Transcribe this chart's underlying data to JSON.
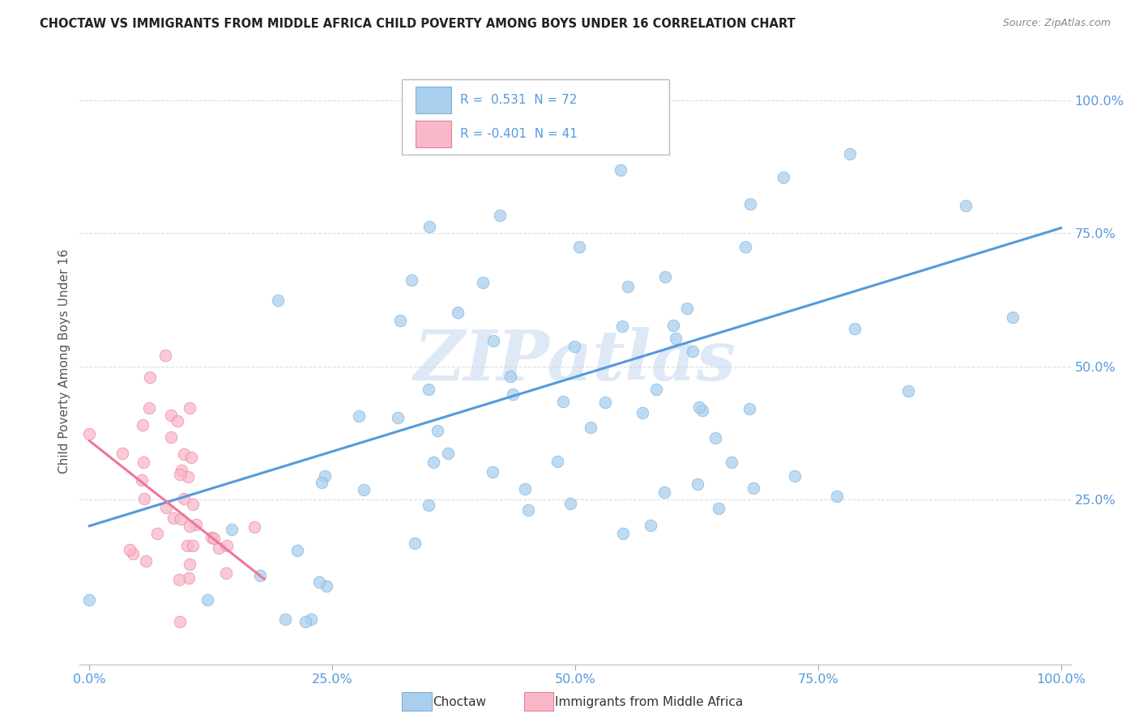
{
  "title": "CHOCTAW VS IMMIGRANTS FROM MIDDLE AFRICA CHILD POVERTY AMONG BOYS UNDER 16 CORRELATION CHART",
  "source": "Source: ZipAtlas.com",
  "ylabel": "Child Poverty Among Boys Under 16",
  "r_choctaw": 0.531,
  "n_choctaw": 72,
  "r_immigrants": -0.401,
  "n_immigrants": 41,
  "choctaw_dot_color": "#aacfee",
  "choctaw_edge_color": "#7ab0d8",
  "immigrants_dot_color": "#f9b8c8",
  "immigrants_edge_color": "#e8809a",
  "choctaw_line_color": "#5599dd",
  "immigrants_line_color": "#ee7799",
  "legend_label_choctaw": "Choctaw",
  "legend_label_immigrants": "Immigrants from Middle Africa",
  "watermark_text": "ZIPatlas",
  "watermark_color": "#c8daf0",
  "background_color": "#ffffff",
  "title_color": "#222222",
  "source_color": "#888888",
  "tick_color": "#5599dd",
  "ylabel_color": "#555555",
  "grid_color": "#dddddd",
  "legend_border_color": "#bbbbbb",
  "choctaw_line_start_x": 0.0,
  "choctaw_line_start_y": 0.2,
  "choctaw_line_end_x": 1.0,
  "choctaw_line_end_y": 0.76,
  "immigrants_line_start_x": 0.0,
  "immigrants_line_start_y": 0.36,
  "immigrants_line_end_x": 0.18,
  "immigrants_line_end_y": 0.1,
  "xlim_min": -0.01,
  "xlim_max": 1.01,
  "ylim_min": -0.06,
  "ylim_max": 1.08,
  "xticks": [
    0.0,
    0.25,
    0.5,
    0.75,
    1.0
  ],
  "yticks": [
    0.25,
    0.5,
    0.75,
    1.0
  ],
  "dot_size": 110,
  "dot_alpha": 0.75
}
